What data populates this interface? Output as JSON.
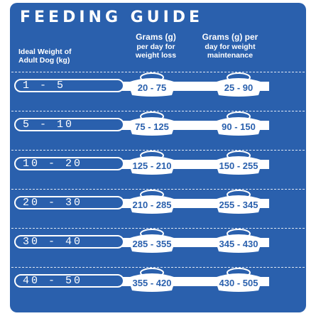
{
  "title": "FEEDING GUIDE",
  "headers": {
    "ideal_line1": "Ideal Weight of",
    "ideal_line2": "Adult Dog (kg)",
    "loss_line1": "Grams (g)",
    "loss_line2": "per day for",
    "loss_line3": "weight loss",
    "maint_line1": "Grams (g) per",
    "maint_line2": "day for weight",
    "maint_line3": "maintenance"
  },
  "rows": [
    {
      "weight": "1 - 5",
      "loss": "20 - 75",
      "maint": "25 - 90"
    },
    {
      "weight": "5 - 10",
      "loss": "75 - 125",
      "maint": "90 - 150"
    },
    {
      "weight": "10 - 20",
      "loss": "125 - 210",
      "maint": "150 - 255"
    },
    {
      "weight": "20 - 30",
      "loss": "210 - 285",
      "maint": "255 - 345"
    },
    {
      "weight": "30 - 40",
      "loss": "285 - 355",
      "maint": "345 - 430"
    },
    {
      "weight": "40 - 50",
      "loss": "355 - 420",
      "maint": "430 - 505"
    }
  ],
  "colors": {
    "brand_blue": "#2a60ad",
    "white": "#ffffff"
  },
  "icons": {
    "bowl": "dog-bowl-icon"
  }
}
